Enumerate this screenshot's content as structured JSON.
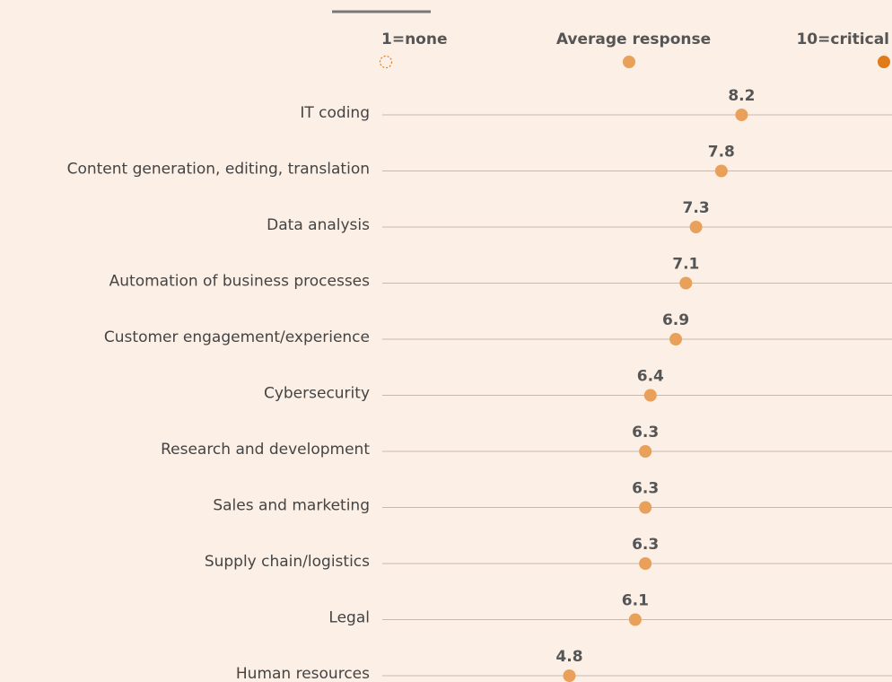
{
  "chart_data": {
    "type": "dot",
    "legend": [
      "1=none",
      "Average response",
      "10=critical"
    ],
    "categories": [
      "IT coding",
      "Content generation, editing, translation",
      "Data analysis",
      "Automation of business processes",
      "Customer engagement/experience",
      "Cybersecurity",
      "Research and development",
      "Sales and marketing",
      "Supply chain/logistics",
      "Legal",
      "Human resources"
    ],
    "values": [
      8.2,
      7.8,
      7.3,
      7.1,
      6.9,
      6.4,
      6.3,
      6.3,
      6.3,
      6.1,
      4.8
    ],
    "color": "#e8a05a",
    "max_color": "#e07b1a",
    "xlim": [
      1,
      10
    ]
  }
}
